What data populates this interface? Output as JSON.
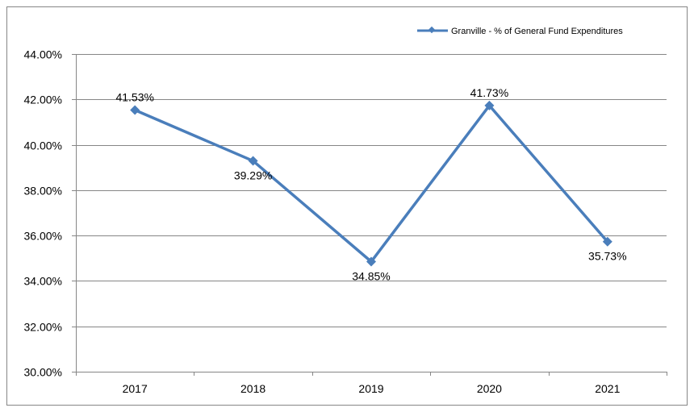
{
  "chart_data": {
    "type": "line",
    "categories": [
      "2017",
      "2018",
      "2019",
      "2020",
      "2021"
    ],
    "series": [
      {
        "name": "Granville - % of General Fund Expenditures",
        "values": [
          41.53,
          39.29,
          34.85,
          41.73,
          35.73
        ],
        "labels": [
          "41.53%",
          "39.29%",
          "34.85%",
          "41.73%",
          "35.73%"
        ]
      }
    ],
    "yticks": [
      "30.00%",
      "32.00%",
      "34.00%",
      "36.00%",
      "38.00%",
      "40.00%",
      "42.00%",
      "44.00%"
    ],
    "ylim": [
      30,
      44
    ],
    "grid": true,
    "legend_position": "top-right",
    "colors": {
      "series": "#4a7ebb",
      "grid": "#868686",
      "axis": "#868686",
      "frame": "#868686"
    }
  }
}
